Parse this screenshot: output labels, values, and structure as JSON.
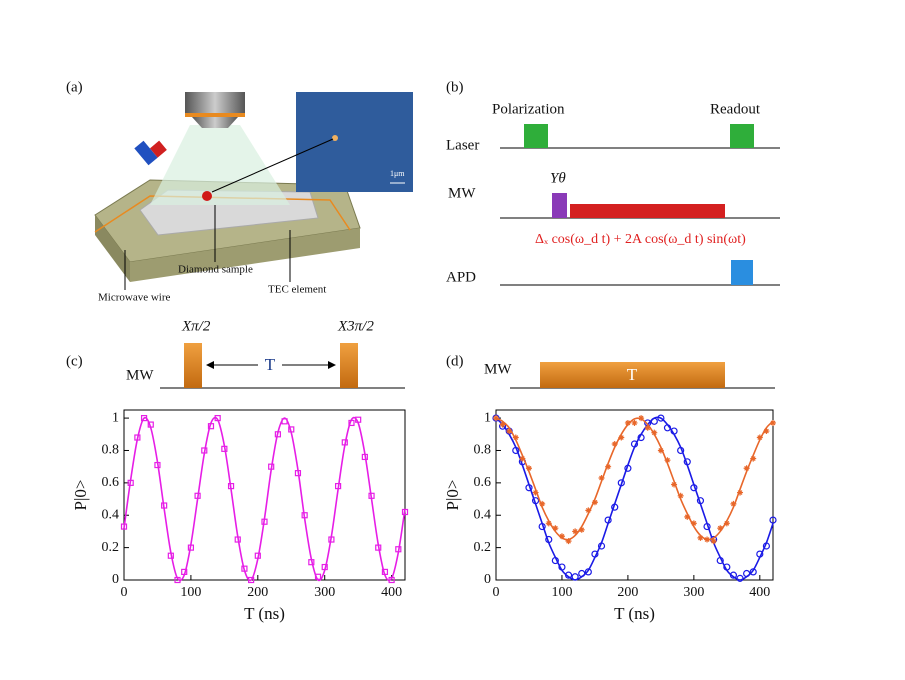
{
  "panels": [
    "(a)",
    "(b)",
    "(c)",
    "(d)"
  ],
  "diagram_a": {
    "labels": [
      "Microwave wire",
      "Diamond sample",
      "TEC element"
    ],
    "scale": "1μm"
  },
  "pulse_b": {
    "rows": [
      "Laser",
      "MW",
      "APD"
    ],
    "pulses": [
      "Polarization",
      "Readout"
    ],
    "rotation": "Yθ",
    "drive": "Δₓ cos(ω_d t) + 2A cos(ω_d t) sin(ωt)"
  },
  "pulse_c": {
    "row": "MW",
    "gap": "T",
    "pulses": [
      "Xπ/2",
      "X3π/2"
    ]
  },
  "pulse_d": {
    "row": "MW",
    "duration": "T"
  },
  "chart_data": [
    {
      "type": "scatter",
      "xlabel": "T (ns)",
      "ylabel": "P|0>",
      "xlim": [
        0,
        420
      ],
      "ylim": [
        0,
        1.05
      ],
      "xticks": [
        0,
        100,
        200,
        300,
        400
      ],
      "yticks": [
        0,
        0.2,
        0.4,
        0.6,
        0.8,
        1
      ],
      "x": [
        0,
        10,
        20,
        30,
        40,
        50,
        60,
        70,
        80,
        90,
        100,
        110,
        120,
        130,
        140,
        150,
        160,
        170,
        180,
        190,
        200,
        210,
        220,
        230,
        240,
        250,
        260,
        270,
        280,
        290,
        300,
        310,
        320,
        330,
        340,
        350,
        360,
        370,
        380,
        390,
        400,
        410,
        420
      ],
      "series": [
        {
          "color": "#e61ee6",
          "marker": "square",
          "values": [
            0.33,
            0.6,
            0.88,
            1.0,
            0.96,
            0.71,
            0.46,
            0.15,
            0.0,
            0.05,
            0.2,
            0.52,
            0.8,
            0.95,
            1.0,
            0.81,
            0.58,
            0.25,
            0.07,
            0.0,
            0.15,
            0.36,
            0.7,
            0.9,
            0.98,
            0.93,
            0.66,
            0.4,
            0.11,
            0.02,
            0.08,
            0.25,
            0.58,
            0.85,
            0.97,
            0.99,
            0.76,
            0.52,
            0.2,
            0.05,
            0.0,
            0.19,
            0.42
          ]
        },
        {
          "color": "#e61ee6",
          "marker": "line",
          "values": [
            0.32,
            0.62,
            0.87,
            1.0,
            0.94,
            0.73,
            0.44,
            0.17,
            0.01,
            0.03,
            0.22,
            0.5,
            0.78,
            0.97,
            0.99,
            0.83,
            0.56,
            0.27,
            0.06,
            0.0,
            0.13,
            0.38,
            0.68,
            0.91,
            1.0,
            0.91,
            0.68,
            0.38,
            0.13,
            0.0,
            0.06,
            0.27,
            0.56,
            0.83,
            0.99,
            0.97,
            0.78,
            0.5,
            0.22,
            0.03,
            0.01,
            0.17,
            0.44
          ]
        }
      ]
    },
    {
      "type": "scatter",
      "xlabel": "T (ns)",
      "ylabel": "P|0>",
      "xlim": [
        0,
        420
      ],
      "ylim": [
        0,
        1.05
      ],
      "xticks": [
        0,
        100,
        200,
        300,
        400
      ],
      "yticks": [
        0,
        0.2,
        0.4,
        0.6,
        0.8,
        1
      ],
      "x": [
        0,
        10,
        20,
        30,
        40,
        50,
        60,
        70,
        80,
        90,
        100,
        110,
        120,
        130,
        140,
        150,
        160,
        170,
        180,
        190,
        200,
        210,
        220,
        230,
        240,
        250,
        260,
        270,
        280,
        290,
        300,
        310,
        320,
        330,
        340,
        350,
        360,
        370,
        380,
        390,
        400,
        410,
        420
      ],
      "series": [
        {
          "color": "#1a1ae6",
          "marker": "circle",
          "values": [
            1.0,
            0.95,
            0.92,
            0.8,
            0.73,
            0.57,
            0.49,
            0.33,
            0.25,
            0.12,
            0.08,
            0.03,
            0.02,
            0.04,
            0.05,
            0.16,
            0.21,
            0.37,
            0.45,
            0.6,
            0.69,
            0.84,
            0.88,
            0.97,
            0.98,
            1.0,
            0.94,
            0.92,
            0.8,
            0.73,
            0.57,
            0.49,
            0.33,
            0.25,
            0.12,
            0.08,
            0.03,
            0.01,
            0.04,
            0.05,
            0.16,
            0.21,
            0.37
          ]
        },
        {
          "color": "#1a1ae6",
          "marker": "line",
          "values": [
            1.0,
            0.96,
            0.9,
            0.82,
            0.71,
            0.59,
            0.47,
            0.35,
            0.23,
            0.14,
            0.06,
            0.02,
            0,
            0.02,
            0.06,
            0.14,
            0.23,
            0.35,
            0.47,
            0.59,
            0.71,
            0.82,
            0.9,
            0.96,
            1.0,
            1.0,
            0.96,
            0.9,
            0.82,
            0.71,
            0.59,
            0.47,
            0.35,
            0.23,
            0.14,
            0.06,
            0.02,
            0,
            0.02,
            0.06,
            0.14,
            0.23,
            0.35
          ]
        },
        {
          "color": "#e8672a",
          "marker": "star",
          "values": [
            1.0,
            0.96,
            0.92,
            0.88,
            0.75,
            0.69,
            0.54,
            0.47,
            0.35,
            0.32,
            0.27,
            0.24,
            0.3,
            0.31,
            0.43,
            0.48,
            0.63,
            0.7,
            0.84,
            0.88,
            0.97,
            0.97,
            1.0,
            0.94,
            0.91,
            0.8,
            0.74,
            0.59,
            0.52,
            0.39,
            0.35,
            0.26,
            0.25,
            0.24,
            0.32,
            0.35,
            0.47,
            0.54,
            0.69,
            0.75,
            0.88,
            0.92,
            0.97
          ]
        },
        {
          "color": "#e8672a",
          "marker": "line",
          "values": [
            1.0,
            0.98,
            0.94,
            0.865,
            0.77,
            0.67,
            0.56,
            0.45,
            0.365,
            0.3,
            0.26,
            0.25,
            0.275,
            0.33,
            0.41,
            0.5,
            0.61,
            0.72,
            0.82,
            0.9,
            0.96,
            0.995,
            0.995,
            0.96,
            0.9,
            0.82,
            0.72,
            0.61,
            0.5,
            0.41,
            0.33,
            0.275,
            0.25,
            0.26,
            0.3,
            0.365,
            0.45,
            0.56,
            0.67,
            0.77,
            0.865,
            0.94,
            0.98
          ]
        }
      ]
    }
  ]
}
